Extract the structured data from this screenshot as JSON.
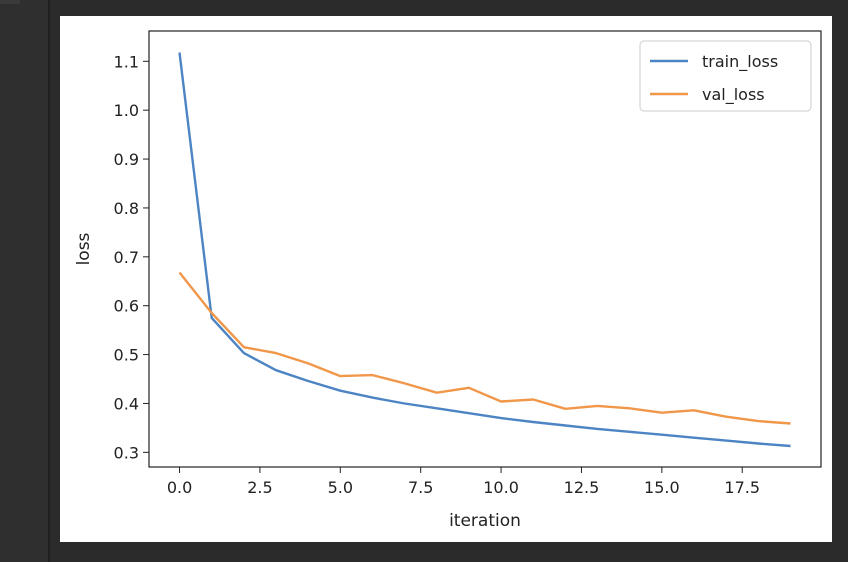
{
  "chart_data": {
    "type": "line",
    "title": "",
    "xlabel": "iteration",
    "ylabel": "loss",
    "xlim": [
      -0.95,
      19.95
    ],
    "ylim": [
      0.27,
      1.162
    ],
    "x_ticks": [
      0.0,
      2.5,
      5.0,
      7.5,
      10.0,
      12.5,
      15.0,
      17.5
    ],
    "x_tick_labels": [
      "0.0",
      "2.5",
      "5.0",
      "7.5",
      "10.0",
      "12.5",
      "15.0",
      "17.5"
    ],
    "y_ticks": [
      0.3,
      0.4,
      0.5,
      0.6,
      0.7,
      0.8,
      0.9,
      1.0,
      1.1
    ],
    "y_tick_labels": [
      "0.3",
      "0.4",
      "0.5",
      "0.6",
      "0.7",
      "0.8",
      "0.9",
      "1.0",
      "1.1"
    ],
    "grid": false,
    "legend_position": "top-right",
    "x": [
      0,
      1,
      2,
      3,
      4,
      5,
      6,
      7,
      8,
      9,
      10,
      11,
      12,
      13,
      14,
      15,
      16,
      17,
      18,
      19
    ],
    "series": [
      {
        "name": "train_loss",
        "color": "#4c84c4",
        "values": [
          1.118,
          0.575,
          0.503,
          0.468,
          0.446,
          0.426,
          0.412,
          0.4,
          0.39,
          0.38,
          0.37,
          0.362,
          0.355,
          0.348,
          0.342,
          0.336,
          0.33,
          0.324,
          0.318,
          0.313
        ]
      },
      {
        "name": "val_loss",
        "color": "#f0974a",
        "values": [
          0.668,
          0.585,
          0.515,
          0.503,
          0.482,
          0.456,
          0.458,
          0.441,
          0.422,
          0.432,
          0.404,
          0.408,
          0.389,
          0.395,
          0.39,
          0.381,
          0.386,
          0.373,
          0.364,
          0.359
        ]
      }
    ]
  }
}
